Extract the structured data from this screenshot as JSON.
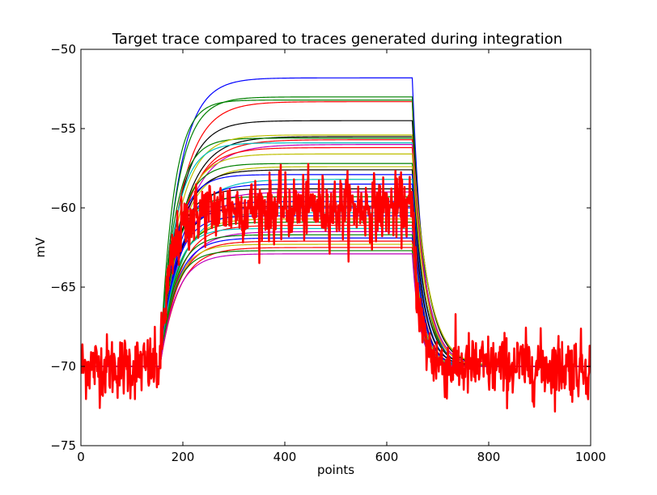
{
  "chart_data": {
    "type": "line",
    "title": "Target trace compared to traces generated during integration",
    "xlabel": "points",
    "ylabel": "mV",
    "xlim": [
      0,
      1000
    ],
    "ylim": [
      -75,
      -50
    ],
    "x_ticks": [
      0,
      200,
      400,
      600,
      800,
      1000
    ],
    "y_ticks": [
      -75,
      -70,
      -65,
      -60,
      -55,
      -50
    ],
    "x_tick_labels": [
      "0",
      "200",
      "400",
      "600",
      "800",
      "1000"
    ],
    "y_tick_labels": [
      "−75",
      "−70",
      "−65",
      "−60",
      "−55",
      "−50"
    ],
    "grid": false,
    "legend": "none",
    "model": {
      "baseline_mV": -70,
      "step_on_point": 155,
      "step_off_point": 650
    },
    "series": [
      {
        "color": "#0000ff",
        "plateau": -51.8,
        "tau_rise": 35,
        "tau_decay": 22
      },
      {
        "color": "#008000",
        "plateau": -53.0,
        "tau_rise": 32,
        "tau_decay": 22
      },
      {
        "color": "#ff0000",
        "plateau": -53.3,
        "tau_rise": 40,
        "tau_decay": 22
      },
      {
        "color": "#008000",
        "plateau": -53.2,
        "tau_rise": 26,
        "tau_decay": 22
      },
      {
        "color": "#000000",
        "plateau": -54.5,
        "tau_rise": 36,
        "tau_decay": 28
      },
      {
        "color": "#000000",
        "plateau": -55.5,
        "tau_rise": 42,
        "tau_decay": 30
      },
      {
        "color": "#008000",
        "plateau": -55.6,
        "tau_rise": 28,
        "tau_decay": 30
      },
      {
        "color": "#bfbf00",
        "plateau": -55.4,
        "tau_rise": 36,
        "tau_decay": 30
      },
      {
        "color": "#ff0000",
        "plateau": -55.7,
        "tau_rise": 44,
        "tau_decay": 27
      },
      {
        "color": "#00bfbf",
        "plateau": -55.9,
        "tau_rise": 30,
        "tau_decay": 27
      },
      {
        "color": "#bf00bf",
        "plateau": -56.0,
        "tau_rise": 46,
        "tau_decay": 27
      },
      {
        "color": "#ff0000",
        "plateau": -56.2,
        "tau_rise": 40,
        "tau_decay": 26
      },
      {
        "color": "#bfbf00",
        "plateau": -56.6,
        "tau_rise": 36,
        "tau_decay": 26
      },
      {
        "color": "#008000",
        "plateau": -57.2,
        "tau_rise": 32,
        "tau_decay": 24
      },
      {
        "color": "#bfbf00",
        "plateau": -57.4,
        "tau_rise": 38,
        "tau_decay": 24
      },
      {
        "color": "#000000",
        "plateau": -57.6,
        "tau_rise": 34,
        "tau_decay": 24
      },
      {
        "color": "#0000ff",
        "plateau": -57.9,
        "tau_rise": 30,
        "tau_decay": 22
      },
      {
        "color": "#00bfbf",
        "plateau": -58.2,
        "tau_rise": 42,
        "tau_decay": 22
      },
      {
        "color": "#0000ff",
        "plateau": -58.5,
        "tau_rise": 36,
        "tau_decay": 22
      },
      {
        "color": "#000000",
        "plateau": -58.8,
        "tau_rise": 30,
        "tau_decay": 22
      },
      {
        "color": "#bf00bf",
        "plateau": -59.0,
        "tau_rise": 40,
        "tau_decay": 20
      },
      {
        "color": "#008000",
        "plateau": -59.3,
        "tau_rise": 28,
        "tau_decay": 20
      },
      {
        "color": "#0000ff",
        "plateau": -59.6,
        "tau_rise": 35,
        "tau_decay": 20
      },
      {
        "color": "#000000",
        "plateau": -59.9,
        "tau_rise": 32,
        "tau_decay": 20
      },
      {
        "color": "#0000ff",
        "plateau": -60.0,
        "tau_rise": 30,
        "tau_decay": 20
      },
      {
        "color": "#00bfbf",
        "plateau": -60.3,
        "tau_rise": 38,
        "tau_decay": 19
      },
      {
        "color": "#0000ff",
        "plateau": -60.5,
        "tau_rise": 30,
        "tau_decay": 19
      },
      {
        "color": "#bfbf00",
        "plateau": -60.7,
        "tau_rise": 34,
        "tau_decay": 19
      },
      {
        "color": "#008000",
        "plateau": -60.9,
        "tau_rise": 32,
        "tau_decay": 18
      },
      {
        "color": "#ff0000",
        "plateau": -61.1,
        "tau_rise": 36,
        "tau_decay": 18
      },
      {
        "color": "#00bfbf",
        "plateau": -61.3,
        "tau_rise": 28,
        "tau_decay": 18
      },
      {
        "color": "#bf00bf",
        "plateau": -61.5,
        "tau_rise": 38,
        "tau_decay": 17
      },
      {
        "color": "#008000",
        "plateau": -61.7,
        "tau_rise": 30,
        "tau_decay": 17
      },
      {
        "color": "#0000ff",
        "plateau": -61.9,
        "tau_rise": 32,
        "tau_decay": 17
      },
      {
        "color": "#ff0000",
        "plateau": -62.1,
        "tau_rise": 34,
        "tau_decay": 16
      },
      {
        "color": "#bfbf00",
        "plateau": -62.3,
        "tau_rise": 30,
        "tau_decay": 16
      },
      {
        "color": "#ff0000",
        "plateau": -62.5,
        "tau_rise": 36,
        "tau_decay": 16
      },
      {
        "color": "#008000",
        "plateau": -62.7,
        "tau_rise": 28,
        "tau_decay": 15
      },
      {
        "color": "#bf00bf",
        "plateau": -62.9,
        "tau_rise": 32,
        "tau_decay": 15
      }
    ],
    "target": {
      "color": "#ff0000",
      "baseline": -70,
      "plateau": -60,
      "tau_rise": 22,
      "tau_decay": 14,
      "noise_sd": 1.0,
      "num_points": 1000
    }
  }
}
